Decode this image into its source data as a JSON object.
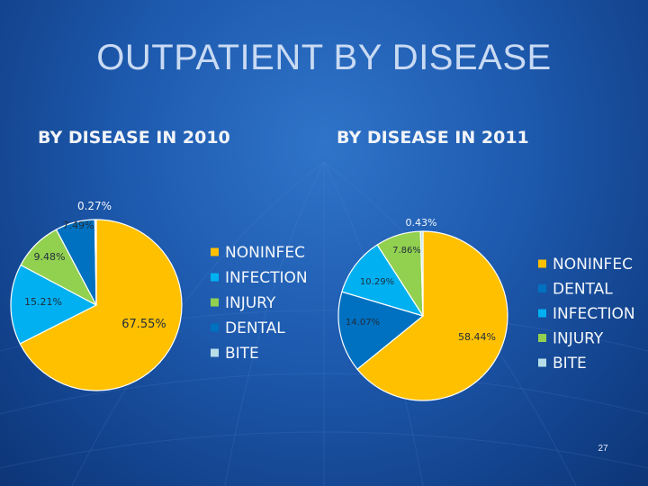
{
  "slide": {
    "title": "OUTPATIENT BY DISEASE",
    "page_number": "27"
  },
  "colors": {
    "NONINFEC": "#ffc000",
    "INFECTION": "#00b0f0",
    "INJURY": "#92d050",
    "DENTAL": "#0070c0",
    "BITE": "#b7dee8",
    "label_dark": "#1f2d3d",
    "legend_text": "#f4f7fb"
  },
  "chart_data": [
    {
      "type": "pie",
      "title": "BY DISEASE IN 2010",
      "legend": [
        "NONINFEC",
        "INFECTION",
        "INJURY",
        "DENTAL",
        "BITE"
      ],
      "legend_position": "right",
      "slices": [
        {
          "name": "NONINFEC",
          "value": 67.55,
          "label": "67.55%"
        },
        {
          "name": "INFECTION",
          "value": 15.21,
          "label": "15.21%"
        },
        {
          "name": "INJURY",
          "value": 9.48,
          "label": "9.48%"
        },
        {
          "name": "DENTAL",
          "value": 7.49,
          "label": "7.49%"
        },
        {
          "name": "BITE",
          "value": 0.27,
          "label": "0.27%"
        }
      ]
    },
    {
      "type": "pie",
      "title": "BY DISEASE IN 2011",
      "legend": [
        "NONINFEC",
        "DENTAL",
        "INFECTION",
        "INJURY",
        "BITE"
      ],
      "legend_position": "right",
      "slices": [
        {
          "name": "NONINFEC",
          "value": 58.44,
          "label": "58.44%"
        },
        {
          "name": "DENTAL",
          "value": 14.07,
          "label": "14.07%"
        },
        {
          "name": "INFECTION",
          "value": 10.29,
          "label": "10.29%"
        },
        {
          "name": "INJURY",
          "value": 7.86,
          "label": "7.86%"
        },
        {
          "name": "BITE",
          "value": 0.43,
          "label": "0.43%"
        }
      ]
    }
  ]
}
